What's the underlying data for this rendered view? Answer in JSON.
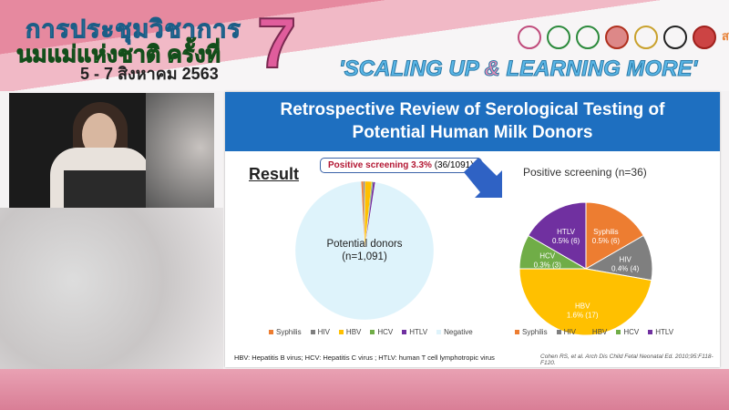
{
  "banner": {
    "thai_line1": "การประชุมวิชาการ",
    "thai_line2": "นมแม่แห่งชาติ ครั้งที่",
    "date": "5 - 7 สิงหาคม 2563",
    "edition": "7",
    "slogan_a": "'SCALING UP ",
    "slogan_amp": "&",
    "slogan_b": " LEARNING MORE'",
    "logo_text": "สสส"
  },
  "slide": {
    "title_line1": "Retrospective Review of Serological Testing of",
    "title_line2": "Potential Human Milk Donors",
    "result_label": "Result",
    "callout_bold": "Positive screening 3.3%",
    "callout_rest": " (36/1091)",
    "footnote": "HBV: Hepatitis B virus; HCV: Hepatitis C virus ; HTLV: human T cell lymphotropic virus",
    "citation": "Cohen RS, et al. Arch Dis Child Fetal Neonatal Ed. 2010;95:F118-F120."
  },
  "chart_data": [
    {
      "type": "pie",
      "center_label_1": "Potential donors",
      "center_label_2": "(n=1,091)",
      "categories": [
        "Syphilis",
        "HIV",
        "HBV",
        "HCV",
        "HTLV",
        "Negative"
      ],
      "values": [
        6,
        4,
        17,
        3,
        6,
        1055
      ],
      "colors": [
        "#ed7d31",
        "#7f7f7f",
        "#ffc000",
        "#70ad47",
        "#7030a0",
        "#def3fb"
      ],
      "legend": "bottom"
    },
    {
      "type": "pie",
      "title": "Positive screening (n=36)",
      "categories": [
        "Syphilis",
        "HIV",
        "HBV",
        "HCV",
        "HTLV"
      ],
      "values": [
        6,
        4,
        17,
        3,
        6
      ],
      "labels": [
        "0.5% (6)",
        "0.4% (4)",
        "1.6% (17)",
        "0.3% (3)",
        "0.5% (6)"
      ],
      "colors": [
        "#ed7d31",
        "#7f7f7f",
        "#ffc000",
        "#70ad47",
        "#7030a0"
      ],
      "legend": "bottom"
    }
  ]
}
